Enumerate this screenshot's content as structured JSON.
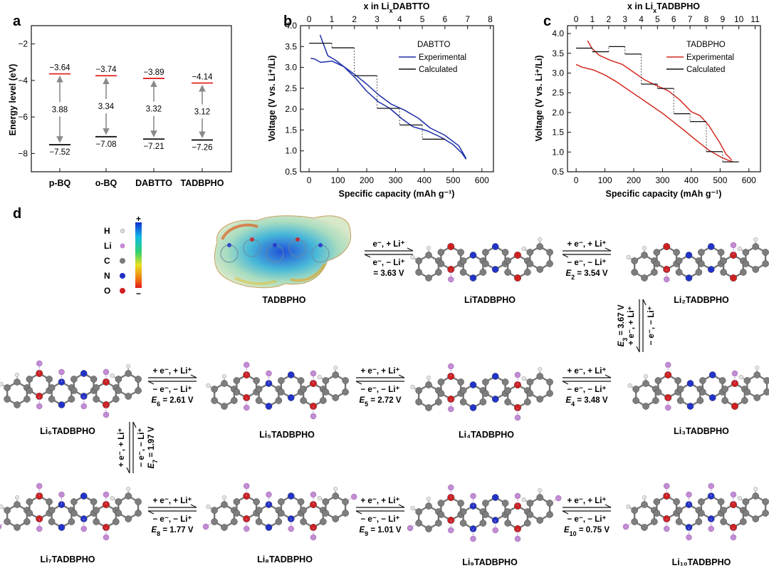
{
  "figure": {
    "panel_labels": [
      "a",
      "b",
      "c",
      "d"
    ]
  },
  "chart_data": [
    {
      "panel": "a",
      "type": "bar",
      "ylabel": "Energy level (eV)",
      "ylim": [
        -9,
        -1
      ],
      "yticks": [
        -2,
        -4,
        -6,
        -8
      ],
      "categories": [
        "p-BQ",
        "o-BQ",
        "DABTTO",
        "TADBPHO"
      ],
      "lumo": [
        -3.64,
        -3.74,
        -3.89,
        -4.14
      ],
      "homo": [
        -7.52,
        -7.08,
        -7.21,
        -7.26
      ],
      "gap": [
        3.88,
        3.34,
        3.32,
        3.12
      ],
      "lumo_labels": [
        "−3.64",
        "−3.74",
        "−3.89",
        "−4.14"
      ],
      "homo_labels": [
        "−7.52",
        "−7.08",
        "−7.21",
        "−7.26"
      ],
      "gap_labels": [
        "3.88",
        "3.34",
        "3.32",
        "3.12"
      ],
      "colors": {
        "lumo": "#e0231f",
        "homo": "#111111",
        "arrow": "#8a8a8a"
      }
    },
    {
      "panel": "b",
      "type": "line",
      "xlabel": "Specific capacity (mAh g⁻¹)",
      "ylabel": "Voltage (V vs. Li⁺/Li)",
      "top_xlabel": "x in LiₓDABTTO",
      "xlim": [
        -30,
        640
      ],
      "ylim": [
        0.5,
        4.0
      ],
      "xticks": [
        0,
        100,
        200,
        300,
        400,
        500,
        600
      ],
      "yticks": [
        0.5,
        1.0,
        1.5,
        2.0,
        2.5,
        3.0,
        3.5,
        4.0
      ],
      "ytick_labels": [
        "0.5",
        "1.0",
        "1.5",
        "2.0",
        "2.5",
        "3.0",
        "3.5",
        "4.0"
      ],
      "top_ticks": [
        0,
        1,
        2,
        3,
        4,
        5,
        6,
        7,
        8
      ],
      "capacity_per_x": 78.6,
      "legend": {
        "title": "DABTTO",
        "experimental": "Experimental",
        "calculated": "Calculated",
        "position": "top-right"
      },
      "series": [
        {
          "name": "Experimental",
          "color": "#1c2ea8",
          "x": [
            545,
            520,
            470,
            420,
            380,
            330,
            285,
            240,
            200,
            160,
            120,
            80,
            40,
            20,
            5
          ],
          "y": [
            0.82,
            1.12,
            1.38,
            1.55,
            1.78,
            1.98,
            2.12,
            2.35,
            2.6,
            2.82,
            3.02,
            3.15,
            3.12,
            3.2,
            3.22
          ]
        },
        {
          "name": "Experimental",
          "color": "#1c2ea8",
          "x": [
            38,
            50,
            65,
            90,
            120,
            160,
            200,
            240,
            280,
            320,
            360,
            410,
            460,
            500,
            530,
            545
          ],
          "y": [
            3.78,
            3.55,
            3.28,
            3.18,
            3.02,
            2.75,
            2.43,
            2.18,
            2.02,
            1.78,
            1.58,
            1.48,
            1.32,
            1.15,
            0.95,
            0.8
          ]
        },
        {
          "name": "Calculated",
          "color": "#111111",
          "steps": [
            [
              0,
              79,
              3.58
            ],
            [
              79,
              157,
              3.47
            ],
            [
              157,
              236,
              2.8
            ],
            [
              236,
              314,
              2.02
            ],
            [
              314,
              393,
              1.62
            ],
            [
              393,
              472,
              1.28
            ]
          ]
        }
      ]
    },
    {
      "panel": "c",
      "type": "line",
      "xlabel": "Specific capacity (mAh g⁻¹)",
      "ylabel": "Voltage (V vs. Li⁺/Li)",
      "top_xlabel": "x in LiₓTADBPHO",
      "xlim": [
        -30,
        640
      ],
      "ylim": [
        0.5,
        4.2
      ],
      "xticks": [
        0,
        100,
        200,
        300,
        400,
        500,
        600
      ],
      "yticks": [
        0.5,
        1.0,
        1.5,
        2.0,
        2.5,
        3.0,
        3.5,
        4.0
      ],
      "ytick_labels": [
        "0.5",
        "1.0",
        "1.5",
        "2.0",
        "2.5",
        "3.0",
        "3.5",
        "4.0"
      ],
      "top_ticks": [
        0,
        1,
        2,
        3,
        4,
        5,
        6,
        7,
        8,
        9,
        10,
        11
      ],
      "capacity_per_x": 56.5,
      "legend": {
        "title": "TADBPHO",
        "experimental": "Experimental",
        "calculated": "Calculated",
        "position": "top-right"
      },
      "series": [
        {
          "name": "Experimental",
          "color": "#d42a20",
          "x": [
            545,
            525,
            500,
            460,
            420,
            380,
            340,
            300,
            260,
            220,
            180,
            140,
            100,
            60,
            20,
            0
          ],
          "y": [
            0.75,
            0.8,
            0.88,
            1.05,
            1.28,
            1.52,
            1.75,
            1.98,
            2.18,
            2.38,
            2.58,
            2.78,
            2.95,
            3.08,
            3.15,
            3.22
          ]
        },
        {
          "name": "Experimental",
          "color": "#d42a20",
          "x": [
            40,
            55,
            80,
            120,
            160,
            200,
            240,
            280,
            320,
            360,
            400,
            430,
            460,
            500,
            520,
            540
          ],
          "y": [
            3.82,
            3.62,
            3.45,
            3.32,
            3.22,
            3.02,
            2.82,
            2.68,
            2.55,
            2.32,
            2.02,
            1.92,
            1.68,
            1.22,
            0.95,
            0.8
          ]
        },
        {
          "name": "Calculated",
          "color": "#111111",
          "steps": [
            [
              0,
              56.5,
              3.63
            ],
            [
              56.5,
              113,
              3.54
            ],
            [
              113,
              169.5,
              3.67
            ],
            [
              169.5,
              226,
              3.48
            ],
            [
              226,
              282.5,
              2.72
            ],
            [
              282.5,
              339,
              2.61
            ],
            [
              339,
              395.5,
              1.97
            ],
            [
              395.5,
              452,
              1.77
            ],
            [
              452,
              508.5,
              1.01
            ],
            [
              508.5,
              565,
              0.75
            ]
          ]
        }
      ]
    }
  ],
  "scheme": {
    "legend": [
      "H",
      "Li",
      "C",
      "N",
      "O"
    ],
    "legend_colors": [
      "#d9d9d9",
      "#c48bd6",
      "#7a7a7a",
      "#1f2fc4",
      "#d21f1f"
    ],
    "colorbar": {
      "plus": "+",
      "minus": "−"
    },
    "molecules": [
      "TADBPHO",
      "LiTADBPHO",
      "Li₂TADBPHO",
      "Li₃TADBPHO",
      "Li₄TADBPHO",
      "Li₅TADBPHO",
      "Li₆TADBPHO",
      "Li₇TADBPHO",
      "Li₈TADBPHO",
      "Li₉TADBPHO",
      "Li₁₀TADBPHO"
    ],
    "steps": [
      {
        "fwd": "e⁻, + Li⁺",
        "rev": "e⁻, − Li⁺",
        "val": "= 3.63 V"
      },
      {
        "fwd": "+ e⁻, + Li⁺",
        "rev": "− e⁻, − Li⁺",
        "e": "E",
        "sub": "2",
        "val": " = 3.54 V"
      },
      {
        "fwd": "+ e⁻, + Li⁺",
        "rev": "− e⁻, − Li⁺",
        "e": "E",
        "sub": "3",
        "val": " = 3.67 V"
      },
      {
        "fwd": "+ e⁻, + Li⁺",
        "rev": "− e⁻, − Li⁺",
        "e": "E",
        "sub": "4",
        "val": " = 3.48 V"
      },
      {
        "fwd": "+ e⁻, + Li⁺",
        "rev": "− e⁻, − Li⁺",
        "e": "E",
        "sub": "5",
        "val": " = 2.72 V"
      },
      {
        "fwd": "+ e⁻, + Li⁺",
        "rev": "− e⁻, − Li⁺",
        "e": "E",
        "sub": "6",
        "val": " = 2.61 V"
      },
      {
        "fwd": "+ e⁻, + Li⁺",
        "rev": "− e⁻, − Li⁺",
        "e": "E",
        "sub": "7",
        "val": " = 1.97 V"
      },
      {
        "fwd": "+ e⁻, + Li⁺",
        "rev": "− e⁻, − Li⁺",
        "e": "E",
        "sub": "8",
        "val": " = 1.77 V"
      },
      {
        "fwd": "+ e⁻, + Li⁺",
        "rev": "− e⁻, − Li⁺",
        "e": "E",
        "sub": "9",
        "val": " = 1.01 V"
      },
      {
        "fwd": "+ e⁻, + Li⁺",
        "rev": "− e⁻, − Li⁺",
        "e": "E",
        "sub": "10",
        "val": " = 0.75 V"
      }
    ]
  }
}
